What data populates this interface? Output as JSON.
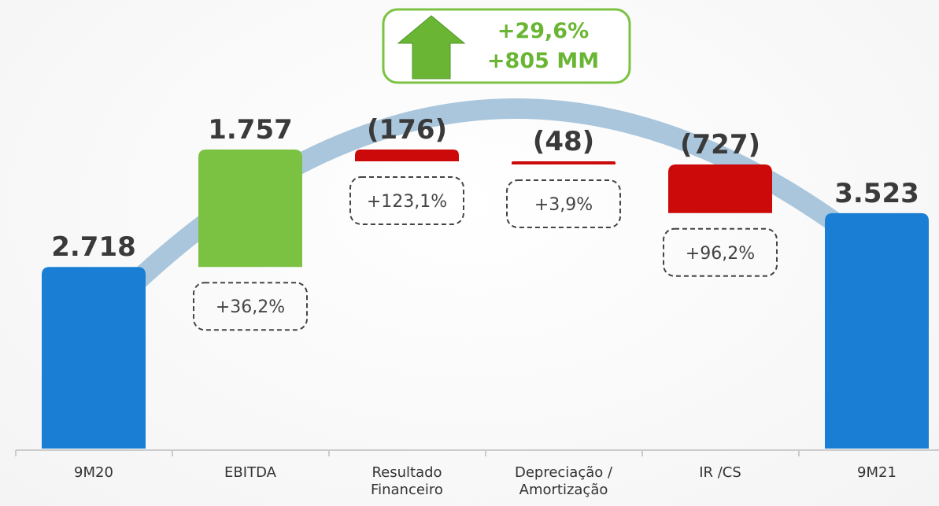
{
  "chart_data": {
    "type": "waterfall",
    "categories": [
      "9M20",
      "EBITDA",
      "Resultado Financeiro",
      "Depreciação / Amortização",
      "IR /CS",
      "9M21"
    ],
    "values": [
      2718,
      1757,
      -176,
      -48,
      -727,
      3523
    ],
    "value_labels": [
      "2.718",
      "1.757",
      "(176)",
      "(48)",
      "(727)",
      "3.523"
    ],
    "measure": [
      "absolute",
      "relative",
      "relative",
      "relative",
      "relative",
      "total"
    ],
    "colors": [
      "#1a7fd4",
      "#7cc242",
      "#cc0a0a",
      "#cc0a0a",
      "#cc0a0a",
      "#1a7fd4"
    ],
    "change_labels": [
      null,
      "+36,2%",
      "+123,1%",
      "+3,9%",
      "+96,2%",
      null
    ],
    "highlight": [
      "+29,6%",
      "+805 MM"
    ]
  }
}
